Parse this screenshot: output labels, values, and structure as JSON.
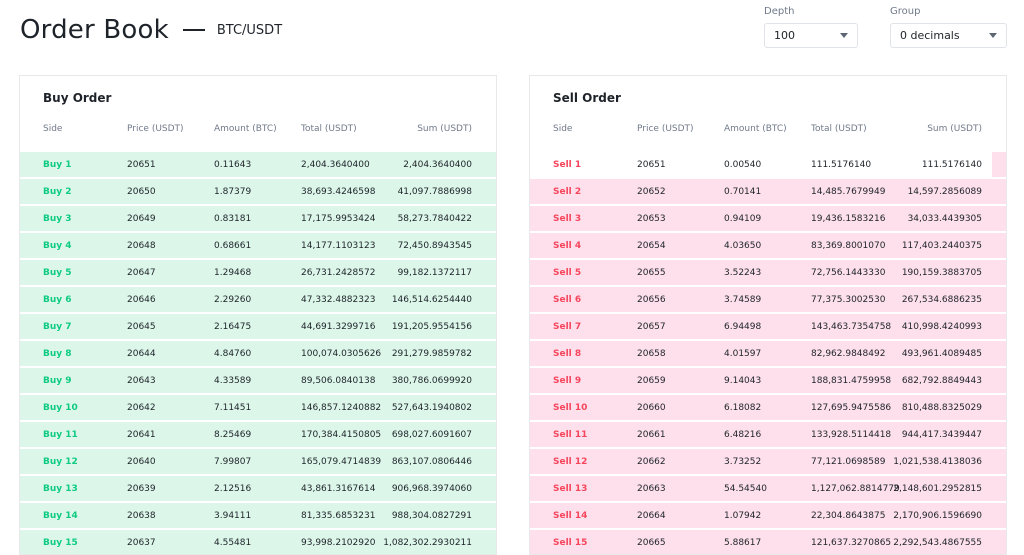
{
  "header": {
    "title": "Order Book",
    "pair": "BTC/USDT"
  },
  "controls": {
    "depth": {
      "label": "Depth",
      "value": "100"
    },
    "group": {
      "label": "Group",
      "value": "0 decimals"
    }
  },
  "colors": {
    "buy_text": "#0ecb81",
    "buy_bg": "#dcf7ea",
    "sell_text": "#f6465d",
    "sell_bg": "#fde0ec"
  },
  "buy": {
    "title": "Buy Order",
    "columns": {
      "side": "Side",
      "price": "Price (USDT)",
      "amount": "Amount (BTC)",
      "total": "Total (USDT)",
      "sum": "Sum (USDT)"
    },
    "rows": [
      {
        "side": "Buy 1",
        "price": "20651",
        "amount": "0.11643",
        "total": "2,404.3640400",
        "sum": "2,404.3640400",
        "depth": 1.0
      },
      {
        "side": "Buy 2",
        "price": "20650",
        "amount": "1.87379",
        "total": "38,693.4246598",
        "sum": "41,097.7886998",
        "depth": 1.0
      },
      {
        "side": "Buy 3",
        "price": "20649",
        "amount": "0.83181",
        "total": "17,175.9953424",
        "sum": "58,273.7840422",
        "depth": 1.0
      },
      {
        "side": "Buy 4",
        "price": "20648",
        "amount": "0.68661",
        "total": "14,177.1103123",
        "sum": "72,450.8943545",
        "depth": 1.0
      },
      {
        "side": "Buy 5",
        "price": "20647",
        "amount": "1.29468",
        "total": "26,731.2428572",
        "sum": "99,182.1372117",
        "depth": 1.0
      },
      {
        "side": "Buy 6",
        "price": "20646",
        "amount": "2.29260",
        "total": "47,332.4882323",
        "sum": "146,514.6254440",
        "depth": 1.0
      },
      {
        "side": "Buy 7",
        "price": "20645",
        "amount": "2.16475",
        "total": "44,691.3299716",
        "sum": "191,205.9554156",
        "depth": 1.0
      },
      {
        "side": "Buy 8",
        "price": "20644",
        "amount": "4.84760",
        "total": "100,074.0305626",
        "sum": "291,279.9859782",
        "depth": 1.0
      },
      {
        "side": "Buy 9",
        "price": "20643",
        "amount": "4.33589",
        "total": "89,506.0840138",
        "sum": "380,786.0699920",
        "depth": 1.0
      },
      {
        "side": "Buy 10",
        "price": "20642",
        "amount": "7.11451",
        "total": "146,857.1240882",
        "sum": "527,643.1940802",
        "depth": 1.0
      },
      {
        "side": "Buy 11",
        "price": "20641",
        "amount": "8.25469",
        "total": "170,384.4150805",
        "sum": "698,027.6091607",
        "depth": 1.0
      },
      {
        "side": "Buy 12",
        "price": "20640",
        "amount": "7.99807",
        "total": "165,079.4714839",
        "sum": "863,107.0806446",
        "depth": 1.0
      },
      {
        "side": "Buy 13",
        "price": "20639",
        "amount": "2.12516",
        "total": "43,861.3167614",
        "sum": "906,968.3974060",
        "depth": 1.0
      },
      {
        "side": "Buy 14",
        "price": "20638",
        "amount": "3.94111",
        "total": "81,335.6853231",
        "sum": "988,304.0827291",
        "depth": 1.0
      },
      {
        "side": "Buy 15",
        "price": "20637",
        "amount": "4.55481",
        "total": "93,998.2102920",
        "sum": "1,082,302.2930211",
        "depth": 1.0
      }
    ]
  },
  "sell": {
    "title": "Sell Order",
    "columns": {
      "side": "Side",
      "price": "Price (USDT)",
      "amount": "Amount (BTC)",
      "total": "Total (USDT)",
      "sum": "Sum (USDT)"
    },
    "rows": [
      {
        "side": "Sell 1",
        "price": "20651",
        "amount": "0.00540",
        "total": "111.5176140",
        "sum": "111.5176140",
        "depth": 0.03
      },
      {
        "side": "Sell 2",
        "price": "20652",
        "amount": "0.70141",
        "total": "14,485.7679949",
        "sum": "14,597.2856089",
        "depth": 1.0
      },
      {
        "side": "Sell 3",
        "price": "20653",
        "amount": "0.94109",
        "total": "19,436.1583216",
        "sum": "34,033.4439305",
        "depth": 1.0
      },
      {
        "side": "Sell 4",
        "price": "20654",
        "amount": "4.03650",
        "total": "83,369.8001070",
        "sum": "117,403.2440375",
        "depth": 1.0
      },
      {
        "side": "Sell 5",
        "price": "20655",
        "amount": "3.52243",
        "total": "72,756.1443330",
        "sum": "190,159.3883705",
        "depth": 1.0
      },
      {
        "side": "Sell 6",
        "price": "20656",
        "amount": "3.74589",
        "total": "77,375.3002530",
        "sum": "267,534.6886235",
        "depth": 1.0
      },
      {
        "side": "Sell 7",
        "price": "20657",
        "amount": "6.94498",
        "total": "143,463.7354758",
        "sum": "410,998.4240993",
        "depth": 1.0
      },
      {
        "side": "Sell 8",
        "price": "20658",
        "amount": "4.01597",
        "total": "82,962.9848492",
        "sum": "493,961.4089485",
        "depth": 1.0
      },
      {
        "side": "Sell 9",
        "price": "20659",
        "amount": "9.14043",
        "total": "188,831.4759958",
        "sum": "682,792.8849443",
        "depth": 1.0
      },
      {
        "side": "Sell 10",
        "price": "20660",
        "amount": "6.18082",
        "total": "127,695.9475586",
        "sum": "810,488.8325029",
        "depth": 1.0
      },
      {
        "side": "Sell 11",
        "price": "20661",
        "amount": "6.48216",
        "total": "133,928.5114418",
        "sum": "944,417.3439447",
        "depth": 1.0
      },
      {
        "side": "Sell 12",
        "price": "20662",
        "amount": "3.73252",
        "total": "77,121.0698589",
        "sum": "1,021,538.4138036",
        "depth": 1.0
      },
      {
        "side": "Sell 13",
        "price": "20663",
        "amount": "54.54540",
        "total": "1,127,062.8814779",
        "sum": "2,148,601.2952815",
        "depth": 1.0
      },
      {
        "side": "Sell 14",
        "price": "20664",
        "amount": "1.07942",
        "total": "22,304.8643875",
        "sum": "2,170,906.1596690",
        "depth": 1.0
      },
      {
        "side": "Sell 15",
        "price": "20665",
        "amount": "5.88617",
        "total": "121,637.3270865",
        "sum": "2,292,543.4867555",
        "depth": 1.0
      }
    ]
  }
}
